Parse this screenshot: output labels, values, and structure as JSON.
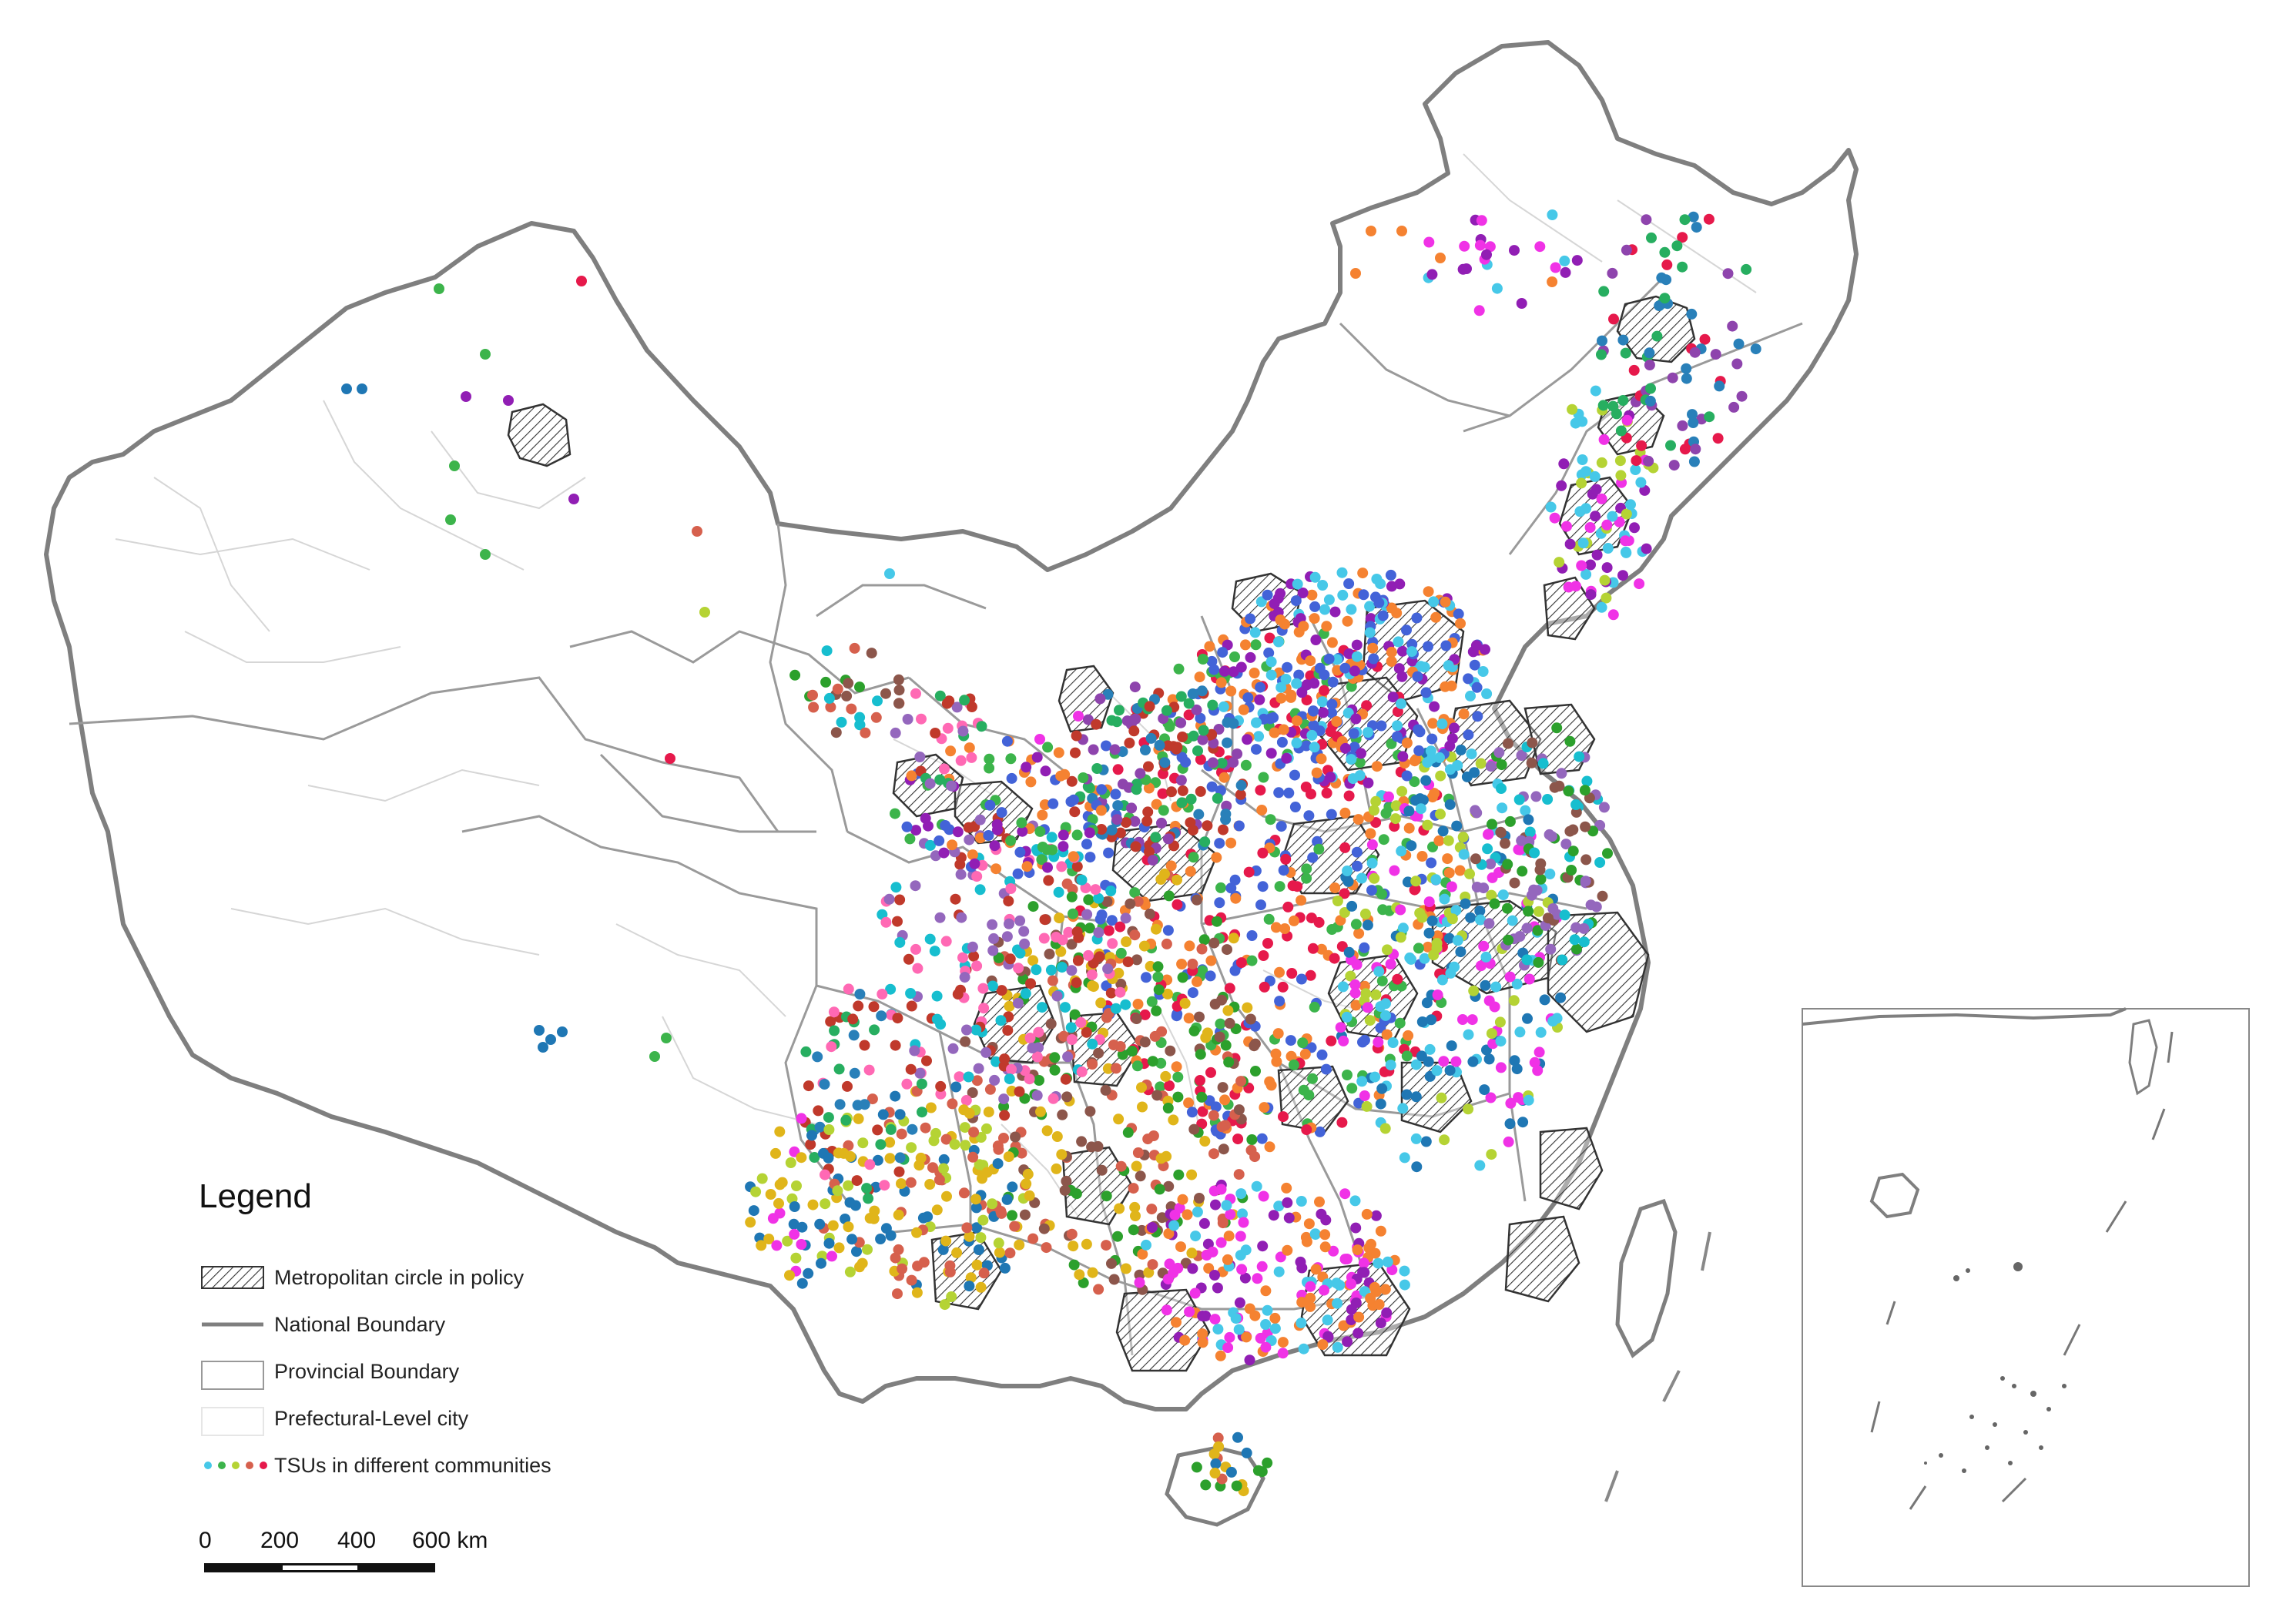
{
  "legend": {
    "title": "Legend",
    "items": [
      {
        "symbol": "hatch",
        "label": "Metropolitan circle in policy"
      },
      {
        "symbol": "line",
        "label": "National Boundary"
      },
      {
        "symbol": "box",
        "label": "Provincial Boundary"
      },
      {
        "symbol": "box-light",
        "label": "Prefectural-Level city"
      },
      {
        "symbol": "dots",
        "label": "TSUs in different communities"
      }
    ]
  },
  "scale_bar": {
    "labels": [
      "0",
      "200",
      "400",
      "600 km"
    ]
  },
  "colors": {
    "national_boundary": "#7f7f7f",
    "provincial_boundary": "#9a9a9a",
    "prefectural_boundary": "#d6d6d6",
    "metro_hatch": "#333333",
    "community_palette": [
      "#e6194b",
      "#3cb44b",
      "#4363d8",
      "#f58231",
      "#911eb4",
      "#46c8e8",
      "#f032e6",
      "#b5d334",
      "#1f77b4",
      "#e0b51a",
      "#d6604d",
      "#2ca02c",
      "#8c564b",
      "#17becf",
      "#9467bd",
      "#ff69b4",
      "#c0392b",
      "#27ae60",
      "#2980b9",
      "#8e44ad"
    ]
  }
}
